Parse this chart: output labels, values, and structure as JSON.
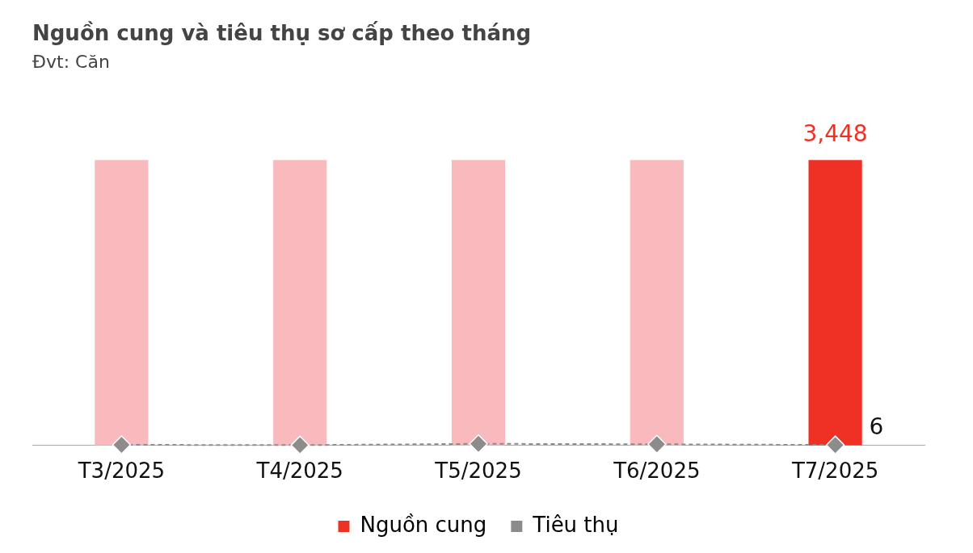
{
  "chart_data": {
    "type": "bar",
    "title": "Nguồn cung và tiêu thụ sơ cấp theo tháng",
    "subtitle": "Đvt: Căn",
    "categories": [
      "T3/2025",
      "T4/2025",
      "T5/2025",
      "T6/2025",
      "T7/2025"
    ],
    "series": [
      {
        "name": "Nguồn cung",
        "color": "#ee3124",
        "colors": [
          "#f8babd",
          "#f8babd",
          "#f8babd",
          "#f8babd",
          "#ee3124"
        ],
        "values": [
          3448,
          3448,
          3448,
          3448,
          3448
        ],
        "value_labels": [
          null,
          null,
          null,
          null,
          "3,448"
        ]
      },
      {
        "name": "Tiêu thụ",
        "type": "line",
        "color": "#8c8c8c",
        "values": [
          8,
          4,
          20,
          15,
          6
        ],
        "value_labels": [
          null,
          null,
          null,
          null,
          "6"
        ],
        "line_style": "dashed",
        "marker": "diamond"
      }
    ],
    "legend": "bottom",
    "grid": false
  }
}
